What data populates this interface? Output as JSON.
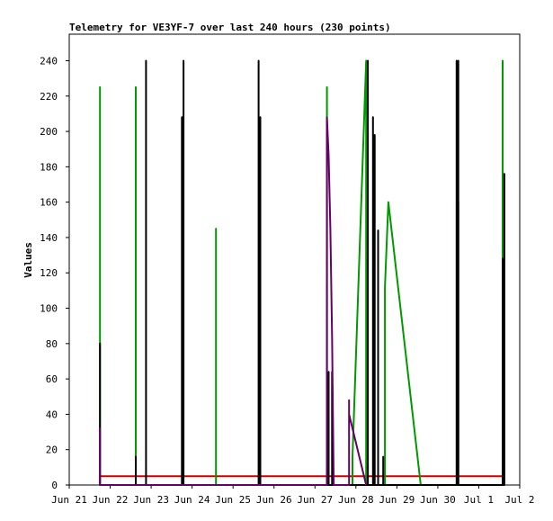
{
  "chart_data": {
    "type": "line",
    "title": "Telemetry for VE3YF-7 over last 240 hours (230 points)",
    "xlabel": "",
    "ylabel": "Values",
    "ylim": [
      0,
      255
    ],
    "xlim": [
      "2024-06-21T00:00",
      "2024-07-02T00:00"
    ],
    "x_ticks": [
      "Jun 21",
      "Jun 22",
      "Jun 23",
      "Jun 24",
      "Jun 25",
      "Jun 26",
      "Jun 27",
      "Jun 28",
      "Jun 29",
      "Jun 30",
      "Jul 1",
      "Jul 2"
    ],
    "y_ticks": [
      0,
      20,
      40,
      60,
      80,
      100,
      120,
      140,
      160,
      180,
      200,
      220,
      240
    ],
    "grid": false,
    "legend": "none",
    "series": [
      {
        "color": "#cc0000",
        "points": [
          [
            "2024-06-21T18:00",
            5
          ],
          [
            "2024-07-01T14:00",
            5
          ]
        ]
      },
      {
        "color": "#009900",
        "points": [
          [
            "2024-06-21T18:00",
            0
          ],
          [
            "2024-06-21T18:00",
            112
          ],
          [
            "2024-06-21T18:00",
            88
          ],
          [
            "2024-06-21T18:00",
            225
          ],
          [
            "2024-06-21T18:00",
            0
          ],
          [
            "2024-06-22T15:00",
            0
          ],
          [
            "2024-06-22T15:00",
            145
          ],
          [
            "2024-06-22T15:00",
            0
          ],
          [
            "2024-06-22T15:00",
            225
          ],
          [
            "2024-06-22T15:00",
            48
          ],
          [
            "2024-06-22T15:00",
            0
          ],
          [
            "2024-06-24T14:00",
            0
          ],
          [
            "2024-06-24T14:00",
            48
          ],
          [
            "2024-06-24T14:00",
            0
          ],
          [
            "2024-06-24T14:00",
            96
          ],
          [
            "2024-06-24T14:00",
            0
          ],
          [
            "2024-06-24T14:00",
            145
          ],
          [
            "2024-06-24T14:00",
            32
          ],
          [
            "2024-06-24T14:00",
            0
          ],
          [
            "2024-06-27T07:00",
            0
          ],
          [
            "2024-06-27T07:00",
            225
          ],
          [
            "2024-06-27T07:00",
            0
          ],
          [
            "2024-06-27T22:00",
            0
          ],
          [
            "2024-06-27T22:00",
            16
          ],
          [
            "2024-06-28T06:00",
            240
          ],
          [
            "2024-06-28T06:00",
            0
          ],
          [
            "2024-06-28T17:00",
            0
          ],
          [
            "2024-06-28T17:00",
            112
          ],
          [
            "2024-06-28T19:00",
            160
          ],
          [
            "2024-06-29T14:00",
            0
          ],
          [
            "2024-06-30T12:00",
            0
          ],
          [
            "2024-06-30T12:00",
            160
          ],
          [
            "2024-06-30T12:00",
            0
          ],
          [
            "2024-07-01T14:00",
            0
          ],
          [
            "2024-07-01T14:00",
            240
          ],
          [
            "2024-07-01T14:00",
            0
          ]
        ]
      },
      {
        "color": "#000000",
        "points": [
          [
            "2024-06-21T18:00",
            0
          ],
          [
            "2024-06-21T18:00",
            80
          ],
          [
            "2024-06-21T18:00",
            0
          ],
          [
            "2024-06-22T15:00",
            0
          ],
          [
            "2024-06-22T15:00",
            16
          ],
          [
            "2024-06-22T15:00",
            0
          ],
          [
            "2024-06-22T21:00",
            0
          ],
          [
            "2024-06-22T21:00",
            121
          ],
          [
            "2024-06-22T21:00",
            240
          ],
          [
            "2024-06-22T21:00",
            0
          ],
          [
            "2024-06-23T18:00",
            0
          ],
          [
            "2024-06-23T18:00",
            208
          ],
          [
            "2024-06-23T18:00",
            0
          ],
          [
            "2024-06-23T19:00",
            0
          ],
          [
            "2024-06-23T19:00",
            240
          ],
          [
            "2024-06-23T19:00",
            0
          ],
          [
            "2024-06-25T15:00",
            0
          ],
          [
            "2024-06-25T15:00",
            240
          ],
          [
            "2024-06-25T15:00",
            0
          ],
          [
            "2024-06-25T16:00",
            0
          ],
          [
            "2024-06-25T16:00",
            208
          ],
          [
            "2024-06-25T16:00",
            0
          ],
          [
            "2024-06-27T07:00",
            0
          ],
          [
            "2024-06-27T07:00",
            8
          ],
          [
            "2024-06-27T07:00",
            0
          ],
          [
            "2024-06-27T08:00",
            0
          ],
          [
            "2024-06-27T08:00",
            64
          ],
          [
            "2024-06-27T08:00",
            0
          ],
          [
            "2024-06-27T10:00",
            0
          ],
          [
            "2024-06-27T10:00",
            64
          ],
          [
            "2024-06-27T10:00",
            0
          ],
          [
            "2024-06-28T07:00",
            0
          ],
          [
            "2024-06-28T07:00",
            240
          ],
          [
            "2024-06-28T07:00",
            0
          ],
          [
            "2024-06-28T10:00",
            0
          ],
          [
            "2024-06-28T10:00",
            208
          ],
          [
            "2024-06-28T10:00",
            0
          ],
          [
            "2024-06-28T11:00",
            0
          ],
          [
            "2024-06-28T11:00",
            198
          ],
          [
            "2024-06-28T11:00",
            176
          ],
          [
            "2024-06-28T11:00",
            0
          ],
          [
            "2024-06-28T13:00",
            0
          ],
          [
            "2024-06-28T13:00",
            144
          ],
          [
            "2024-06-28T13:00",
            0
          ],
          [
            "2024-06-28T16:00",
            0
          ],
          [
            "2024-06-28T16:00",
            16
          ],
          [
            "2024-06-28T16:00",
            0
          ],
          [
            "2024-06-30T11:00",
            0
          ],
          [
            "2024-06-30T11:00",
            240
          ],
          [
            "2024-06-30T11:00",
            0
          ],
          [
            "2024-06-30T12:00",
            0
          ],
          [
            "2024-06-30T12:00",
            240
          ],
          [
            "2024-06-30T12:00",
            16
          ],
          [
            "2024-06-30T12:00",
            0
          ],
          [
            "2024-07-01T14:00",
            0
          ],
          [
            "2024-07-01T14:00",
            128
          ],
          [
            "2024-07-01T14:00",
            0
          ],
          [
            "2024-07-01T15:00",
            0
          ],
          [
            "2024-07-01T15:00",
            176
          ],
          [
            "2024-07-01T15:00",
            0
          ]
        ]
      },
      {
        "color": "#660066",
        "points": [
          [
            "2024-06-21T18:00",
            0
          ],
          [
            "2024-06-21T18:00",
            32
          ],
          [
            "2024-06-21T18:00",
            0
          ],
          [
            "2024-06-27T07:00",
            0
          ],
          [
            "2024-06-27T07:00",
            208
          ],
          [
            "2024-06-27T08:00",
            186
          ],
          [
            "2024-06-27T09:00",
            145
          ],
          [
            "2024-06-27T10:00",
            84
          ],
          [
            "2024-06-27T11:00",
            0
          ],
          [
            "2024-06-27T20:00",
            0
          ],
          [
            "2024-06-27T20:00",
            48
          ],
          [
            "2024-06-27T20:00",
            40
          ],
          [
            "2024-06-28T06:00",
            0
          ]
        ]
      }
    ]
  }
}
